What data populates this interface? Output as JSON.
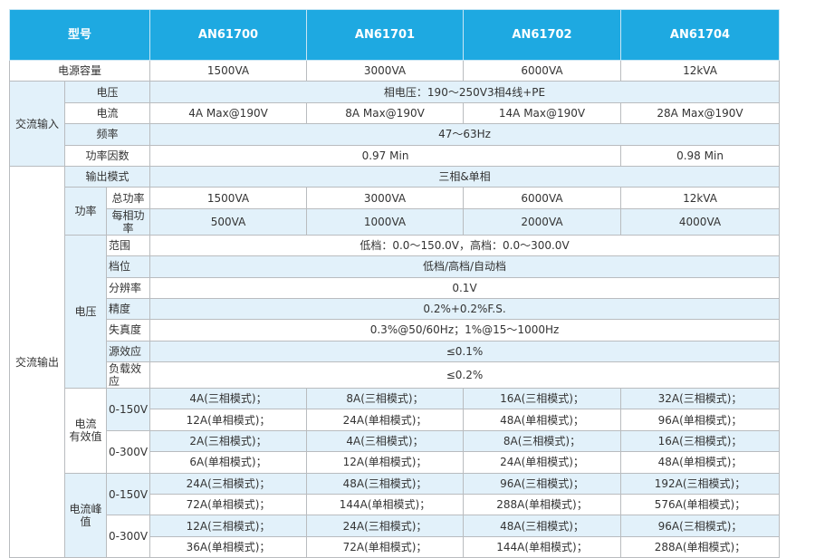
{
  "header": {
    "label": "型号",
    "models": [
      "AN61700",
      "AN61701",
      "AN61702",
      "AN61704"
    ]
  },
  "capacity": {
    "label": "电源容量",
    "values": [
      "1500VA",
      "3000VA",
      "6000VA",
      "12kVA"
    ]
  },
  "ac_input": {
    "label": "交流输入",
    "voltage": {
      "label": "电压",
      "value": "相电压：190～250V3相4线+PE"
    },
    "current": {
      "label": "电流",
      "values": [
        "4A Max@190V",
        "8A Max@190V",
        "14A Max@190V",
        "28A Max@190V"
      ]
    },
    "frequency": {
      "label": "频率",
      "value": "47～63Hz"
    },
    "power_factor": {
      "label": "功率因数",
      "values": [
        "0.97 Min",
        "0.98 Min"
      ]
    }
  },
  "ac_output": {
    "label": "交流输出",
    "output_mode": {
      "label": "输出模式",
      "value": "三相&单相"
    },
    "power": {
      "label": "功率",
      "total": {
        "label": "总功率",
        "values": [
          "1500VA",
          "3000VA",
          "6000VA",
          "12kVA"
        ]
      },
      "per_phase": {
        "label": "每相功率",
        "values": [
          "500VA",
          "1000VA",
          "2000VA",
          "4000VA"
        ]
      }
    },
    "voltage": {
      "label": "电压",
      "range": {
        "label": "范围",
        "value": "低档：0.0～150.0V，高档：0.0～300.0V"
      },
      "gear": {
        "label": "档位",
        "value": "低档/高档/自动档"
      },
      "resolution": {
        "label": "分辨率",
        "value": "0.1V"
      },
      "accuracy": {
        "label": "精度",
        "value": "0.2%+0.2%F.S."
      },
      "distortion": {
        "label": "失真度",
        "value": "0.3%@50/60Hz；1%@15～1000Hz"
      },
      "source_effect": {
        "label": "源效应",
        "value": "≤0.1%"
      },
      "load_effect": {
        "label": "负载效应",
        "value": "≤0.2%"
      }
    },
    "rms_current": {
      "label": "电流\n有效值",
      "low": {
        "label": "0-150V",
        "three": [
          "4A(三相模式)；",
          "8A(三相模式)；",
          "16A(三相模式)；",
          "32A(三相模式)；"
        ],
        "single": [
          "12A(单相模式)；",
          "24A(单相模式)；",
          "48A(单相模式)；",
          "96A(单相模式)；"
        ]
      },
      "high": {
        "label": "0-300V",
        "three": [
          "2A(三相模式)；",
          "4A(三相模式)；",
          "8A(三相模式)；",
          "16A(三相模式)；"
        ],
        "single": [
          "6A(单相模式)；",
          "12A(单相模式)；",
          "24A(单相模式)；",
          "48A(单相模式)；"
        ]
      }
    },
    "peak_current": {
      "label": "电流峰值",
      "low": {
        "label": "0-150V",
        "three": [
          "24A(三相模式)；",
          "48A(三相模式)；",
          "96A(三相模式)；",
          "192A(三相模式)；"
        ],
        "single": [
          "72A(单相模式)；",
          "144A(单相模式)；",
          "288A(单相模式)；",
          "576A(单相模式)；"
        ]
      },
      "high": {
        "label": "0-300V",
        "three": [
          "12A(三相模式)；",
          "24A(三相模式)；",
          "48A(三相模式)；",
          "96A(三相模式)；"
        ],
        "single": [
          "36A(单相模式)；",
          "72A(单相模式)；",
          "144A(单相模式)；",
          "288A(单相模式)；"
        ]
      }
    }
  },
  "colors": {
    "header": "#1ea9e1",
    "row_alt": "#e2f1fa"
  }
}
